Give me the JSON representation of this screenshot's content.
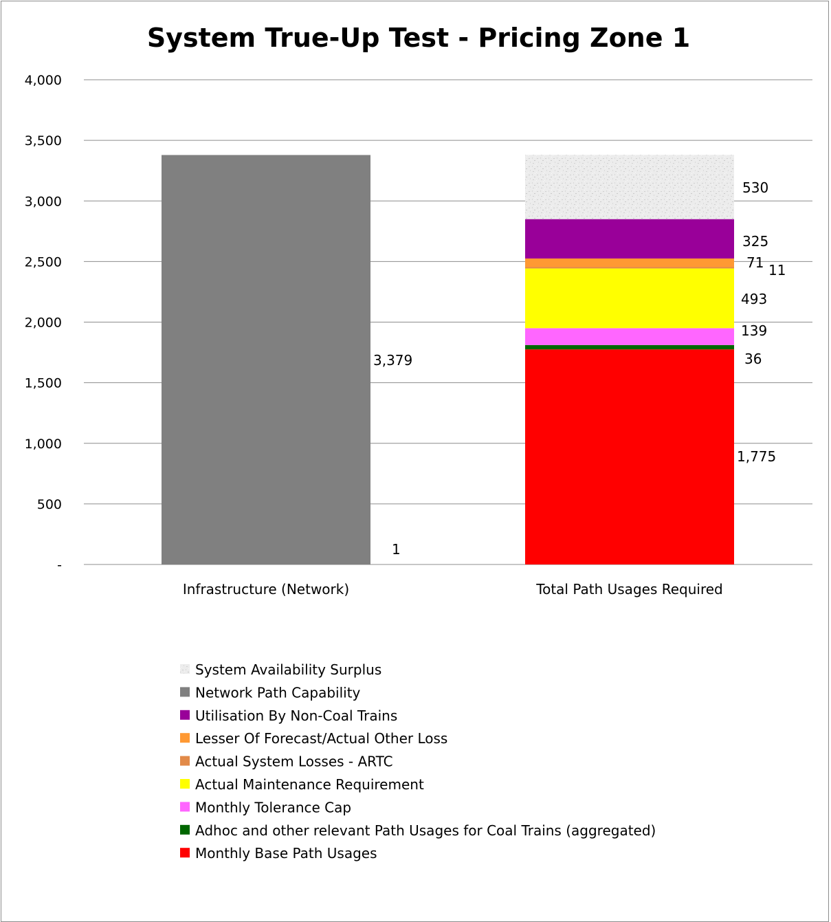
{
  "chart_data": {
    "type": "bar",
    "stacked": true,
    "title": "System True-Up Test - Pricing Zone 1",
    "xlabel": "",
    "ylabel": "",
    "ylim": [
      0,
      4000
    ],
    "yticks": [
      0,
      500,
      1000,
      1500,
      2000,
      2500,
      3000,
      3500,
      4000
    ],
    "ytick_labels": [
      "-",
      "500",
      "1,000",
      "1,500",
      "2,000",
      "2,500",
      "3,000",
      "3,500",
      "4,000"
    ],
    "grid": true,
    "legend_position": "bottom",
    "categories": [
      "Infrastructure (Network)",
      "Total Path Usages Required"
    ],
    "series": [
      {
        "name": "Monthly Base Path Usages",
        "color": "#ff0000",
        "values": [
          0,
          1775
        ],
        "labels": [
          "",
          "1,775"
        ]
      },
      {
        "name": "Adhoc and other relevant Path Usages for Coal Trains (aggregated)",
        "color": "#006600",
        "values": [
          0,
          36
        ],
        "labels": [
          "",
          "36"
        ]
      },
      {
        "name": "Monthly Tolerance Cap",
        "color": "#ff66ff",
        "values": [
          0,
          139
        ],
        "labels": [
          "",
          "139"
        ]
      },
      {
        "name": "Actual Maintenance Requirement",
        "color": "#ffff00",
        "values": [
          0,
          493
        ],
        "labels": [
          "",
          "493"
        ]
      },
      {
        "name": "Actual System Losses - ARTC",
        "color": "#e28a48",
        "values": [
          0,
          11
        ],
        "labels": [
          "",
          "11"
        ]
      },
      {
        "name": "Lesser Of Forecast/Actual Other Loss",
        "color": "#ff9933",
        "values": [
          0,
          71
        ],
        "labels": [
          "",
          "71"
        ]
      },
      {
        "name": "Utilisation By Non-Coal Trains",
        "color": "#990099",
        "values": [
          0,
          325
        ],
        "labels": [
          "",
          "325"
        ]
      },
      {
        "name": "Network Path Capability",
        "color": "#808080",
        "values": [
          3379,
          0
        ],
        "labels": [
          "3,379",
          ""
        ]
      },
      {
        "name": "System Availability Surplus",
        "color": "#e8e8e8",
        "pattern": "speckle",
        "values": [
          1,
          530
        ],
        "labels": [
          "1",
          "530"
        ]
      }
    ],
    "legend_order": [
      "System Availability Surplus",
      "Network Path Capability",
      "Utilisation By Non-Coal Trains",
      "Lesser Of Forecast/Actual Other Loss",
      "Actual System Losses - ARTC",
      "Actual Maintenance Requirement",
      "Monthly Tolerance Cap",
      "Adhoc and other relevant Path Usages for Coal Trains (aggregated)",
      "Monthly Base Path Usages"
    ]
  }
}
